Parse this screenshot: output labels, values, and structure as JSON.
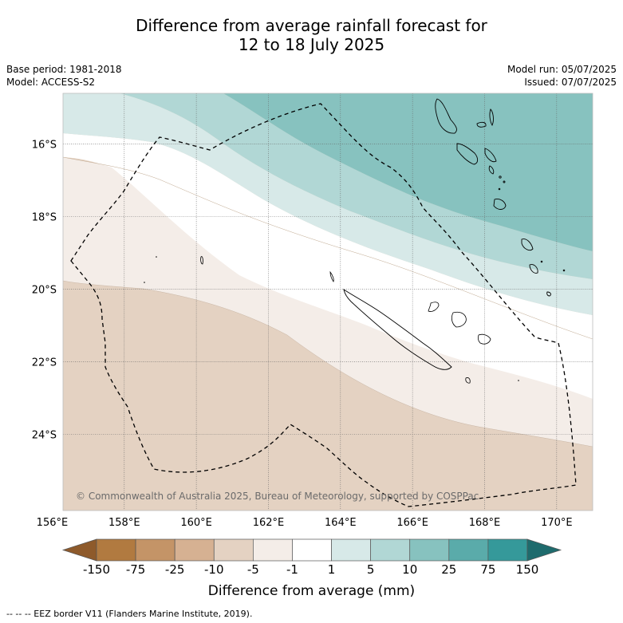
{
  "title": {
    "line1": "Difference from average rainfall forecast for",
    "line2": "12 to 18 July 2025"
  },
  "meta": {
    "base_period": "Base period: 1981-2018",
    "model": "Model: ACCESS-S2",
    "model_run": "Model run: 05/07/2025",
    "issued": "Issued: 07/07/2025"
  },
  "map": {
    "lon_range": [
      156.3,
      171.0
    ],
    "lat_range": [
      -26.1,
      -14.6
    ],
    "lon_ticks": [
      "156°E",
      "158°E",
      "160°E",
      "162°E",
      "164°E",
      "166°E",
      "168°E",
      "170°E"
    ],
    "lat_ticks": [
      "16°S",
      "18°S",
      "20°S",
      "22°S",
      "24°S"
    ],
    "copyright": "© Commonwealth of Australia 2025, Bureau of Meteorology, supported by COSPPac",
    "gridlines": true
  },
  "legend": {
    "title": "Difference from average (mm)",
    "labels": [
      "-150",
      "-75",
      "-25",
      "-10",
      "-5",
      "-1",
      "1",
      "5",
      "10",
      "25",
      "75",
      "150"
    ],
    "colors": [
      "#8e5a2b",
      "#b17a40",
      "#c49467",
      "#d6b192",
      "#e4d2c2",
      "#f4ede8",
      "#ffffff",
      "#d7e9e8",
      "#b1d7d5",
      "#87c2bf",
      "#5aabaa",
      "#35999a",
      "#1e6b6d"
    ]
  },
  "footnote": "--  --  -- EEZ border V11 (Flanders Marine Institute, 2019)."
}
